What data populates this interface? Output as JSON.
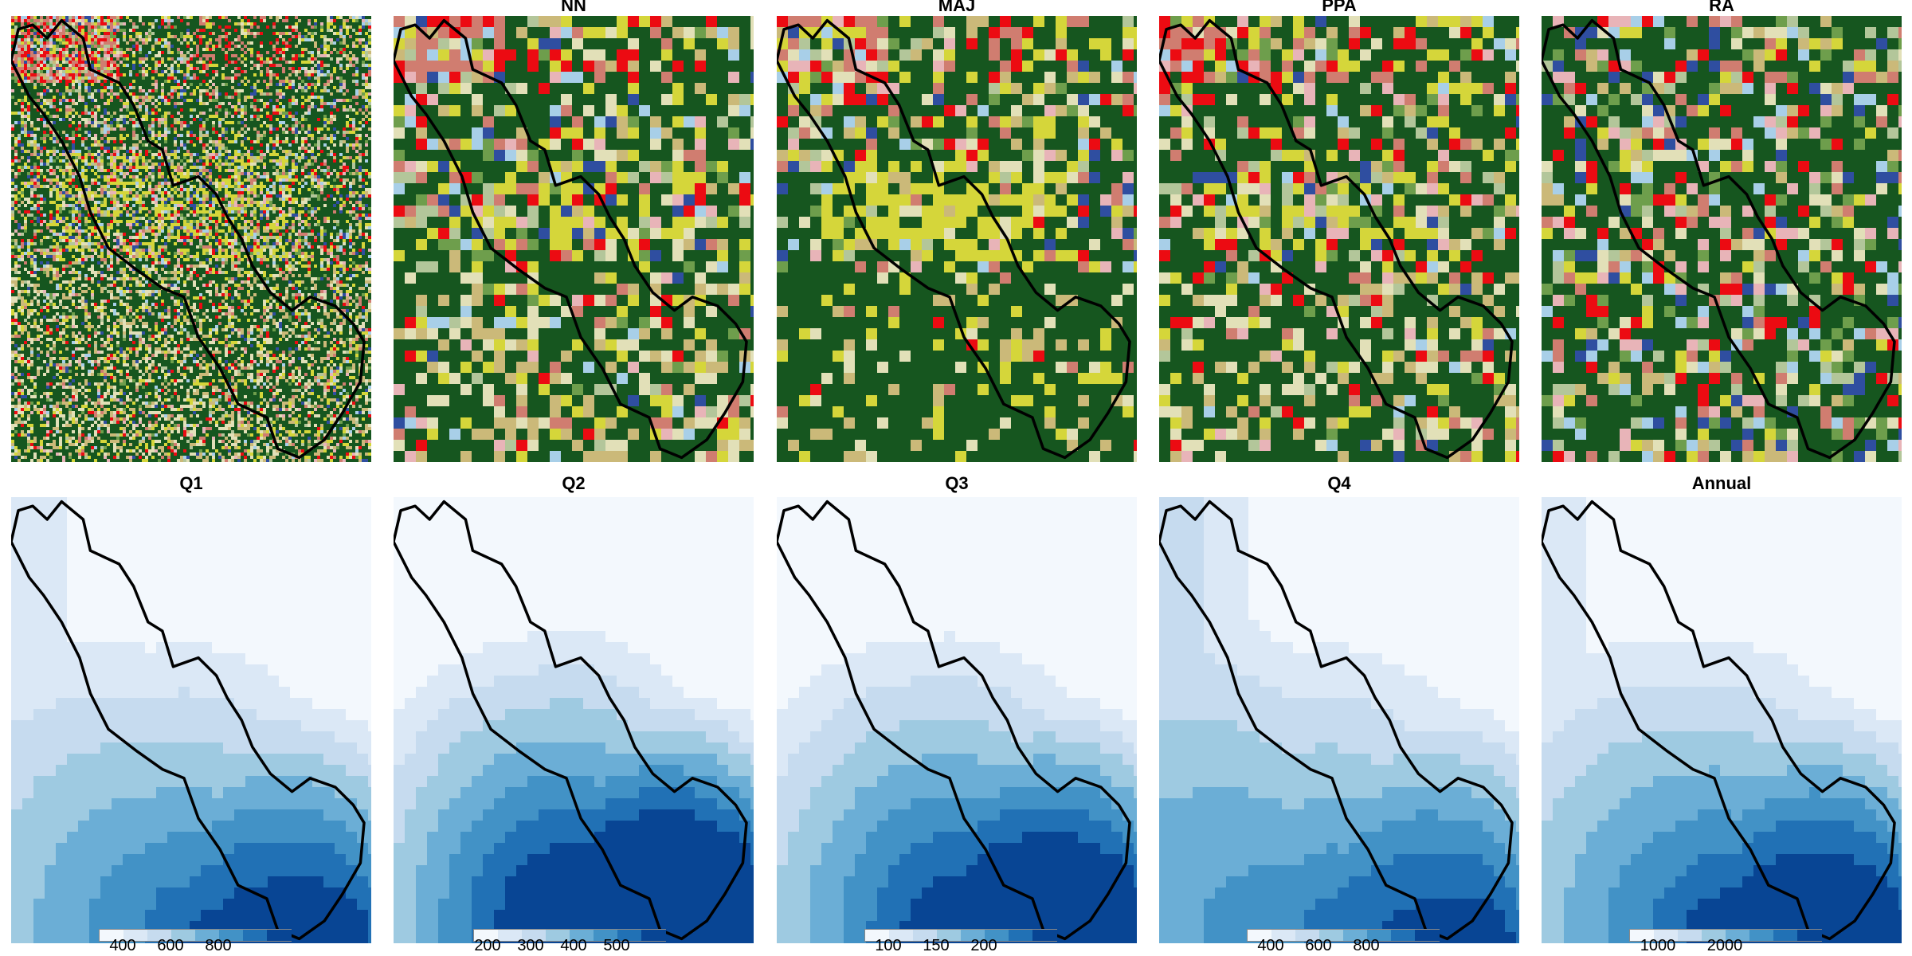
{
  "top_row": [
    {
      "title": ""
    },
    {
      "title": "NN"
    },
    {
      "title": "MAJ"
    },
    {
      "title": "PPA"
    },
    {
      "title": "RA"
    }
  ],
  "bottom_row": [
    {
      "title": "Q1",
      "ticks": [
        "400",
        "600",
        "800"
      ]
    },
    {
      "title": "Q2",
      "ticks": [
        "200",
        "300",
        "400",
        "500"
      ]
    },
    {
      "title": "Q3",
      "ticks": [
        "100",
        "150",
        "200"
      ]
    },
    {
      "title": "Q4",
      "ticks": [
        "400",
        "600",
        "800"
      ]
    },
    {
      "title": "Annual",
      "ticks": [
        "1000",
        "2000"
      ]
    }
  ],
  "colors": {
    "landcover": [
      "#16561f",
      "#d5d63a",
      "#cbb979",
      "#e2e0b8",
      "#a8cfe8",
      "#ec0b12",
      "#d07d70",
      "#6e9e4c",
      "#e8b4b8",
      "#2f4ea0",
      "#b3c69a"
    ],
    "blues": [
      "#f3f8fd",
      "#dbe8f6",
      "#c6dbef",
      "#9ecae1",
      "#6baed6",
      "#4292c6",
      "#2171b5",
      "#084594"
    ],
    "boundary": "#000000"
  }
}
